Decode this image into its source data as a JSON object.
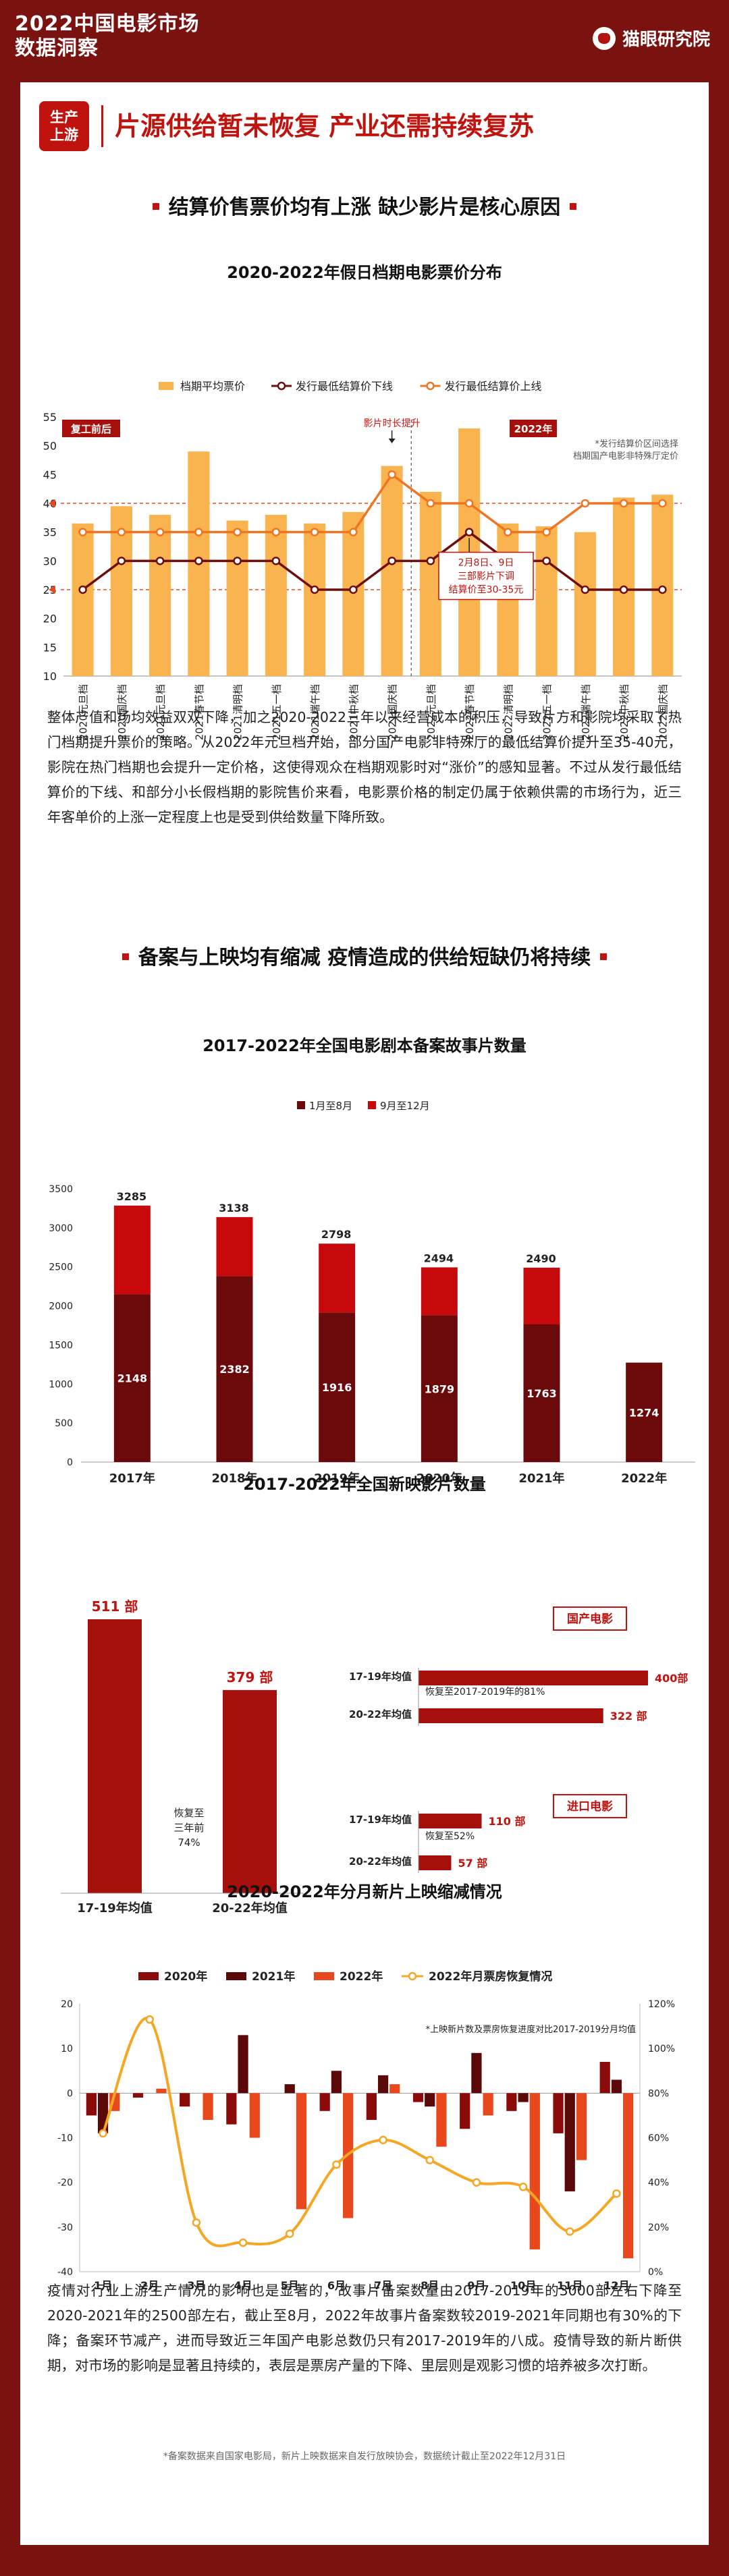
{
  "header": {
    "title_line1": "2022中国电影市场",
    "title_line2": "数据洞察",
    "brand": "猫眼研究院"
  },
  "section_tag": {
    "line1": "生产",
    "line2": "上游"
  },
  "main_title": "片源供给暂未恢复 产业还需持续复苏",
  "sub_title_1": "结算价售票价均有上涨 缺少影片是核心原因",
  "chart1": {
    "chart_data": {
      "type": "bar",
      "title": "2020-2022年假日档期电影票价分布",
      "categories": [
        "2020元旦档",
        "2020国庆档",
        "2021元旦档",
        "2021春节档",
        "2021清明档",
        "2021五一档",
        "2021端午档",
        "2021中秋档",
        "2021国庆档",
        "2022元旦档",
        "2022春节档",
        "2022清明档",
        "2022五一档",
        "2022端午档",
        "2022中秋档",
        "2022国庆档"
      ],
      "series": [
        {
          "name": "档期平均票价",
          "type": "bar",
          "color": "#f9b44f",
          "values": [
            36.5,
            39.5,
            38,
            49,
            37,
            38,
            36.5,
            38.5,
            46.5,
            42,
            53,
            36.5,
            36,
            35,
            41,
            41.5
          ]
        },
        {
          "name": "发行最低结算价下线",
          "type": "line",
          "color": "#6e0e0b",
          "values": [
            25,
            30,
            30,
            30,
            30,
            30,
            25,
            25,
            30,
            30,
            35,
            30,
            30,
            25,
            25,
            25
          ]
        },
        {
          "name": "发行最低结算价上线",
          "type": "line",
          "color": "#f07522",
          "values": [
            35,
            35,
            35,
            35,
            35,
            35,
            35,
            35,
            45,
            40,
            40,
            35,
            35,
            40,
            40,
            40
          ]
        }
      ],
      "ylim": [
        10,
        55
      ],
      "yticks": [
        10,
        15,
        20,
        25,
        30,
        35,
        40,
        45,
        50,
        55
      ],
      "annotations": {
        "left_tag": "复工前后",
        "right_tag": "2022年",
        "peak_note": "影片时长提升",
        "note_line1": "*发行结算价区间选择",
        "note_line2": "档期国产电影非特殊厅定价",
        "callout_line1": "2月8日、9日",
        "callout_line2": "三部影片下调",
        "callout_line3": "结算价至30-35元"
      }
    }
  },
  "para1": "整体产值和场均效益双双下降，加之2020-2022三年以来经营成本的积压，导致片方和影院均采取了热门档期提升票价的策略。从2022年元旦档开始，部分国产电影非特殊厅的最低结算价提升至35-40元，影院在热门档期也会提升一定价格，这使得观众在档期观影时对“涨价”的感知显著。不过从发行最低结算价的下线、和部分小长假档期的影院售价来看，电影票价格的制定仍属于依赖供需的市场行为，近三年客单价的上涨一定程度上也是受到供给数量下降所致。",
  "sub_title_2": "备案与上映均有缩减 疫情造成的供给短缺仍将持续",
  "chart2": {
    "chart_data": {
      "type": "bar",
      "title": "2017-2022年全国电影剧本备案故事片数量",
      "categories": [
        "2017年",
        "2018年",
        "2019年",
        "2020年",
        "2021年",
        "2022年"
      ],
      "series": [
        {
          "name": "1月至8月",
          "color": "#6b0a0a",
          "values": [
            2148,
            2382,
            1916,
            1879,
            1763,
            1274
          ]
        },
        {
          "name": "9月至12月",
          "color": "#c8090b",
          "values": [
            1137,
            756,
            882,
            615,
            727,
            null
          ]
        }
      ],
      "totals": [
        3285,
        3138,
        2798,
        2494,
        2490,
        null
      ],
      "ylim": [
        0,
        3500
      ],
      "yticks": [
        0,
        500,
        1000,
        1500,
        2000,
        2500,
        3000,
        3500
      ]
    }
  },
  "chart3": {
    "chart_data": {
      "type": "bar",
      "title": "2017-2022年全国新映影片数量",
      "categories": [
        "17-19年均值",
        "20-22年均值"
      ],
      "values": [
        511,
        379
      ],
      "value_labels": [
        "511 部",
        "379 部"
      ],
      "recovery_note": [
        "恢复至",
        "三年前",
        "74%"
      ],
      "domestic": {
        "label": "国产电影",
        "categories": [
          "17-19年均值",
          "20-22年均值"
        ],
        "values": [
          400,
          322
        ],
        "value_labels": [
          "400部",
          "322 部"
        ],
        "note": "恢复至2017-2019年的81%"
      },
      "imported": {
        "label": "进口电影",
        "categories": [
          "17-19年均值",
          "20-22年均值"
        ],
        "values": [
          110,
          57
        ],
        "value_labels": [
          "110 部",
          "57 部"
        ],
        "note": "恢复至52%"
      }
    }
  },
  "chart4": {
    "chart_data": {
      "type": "bar",
      "title": "2020-2022年分月新片上映缩减情况",
      "categories": [
        "1月",
        "2月",
        "3月",
        "4月",
        "5月",
        "6月",
        "7月",
        "8月",
        "9月",
        "10月",
        "11月",
        "12月"
      ],
      "series": [
        {
          "name": "2020年",
          "type": "bar",
          "color": "#8b0b0b",
          "values": [
            -5,
            -1,
            -3,
            -7,
            0,
            -4,
            -6,
            -2,
            -8,
            -4,
            -9,
            7
          ]
        },
        {
          "name": "2021年",
          "type": "bar",
          "color": "#5a0808",
          "values": [
            -9,
            0,
            0,
            13,
            2,
            5,
            4,
            -3,
            9,
            -2,
            -22,
            3
          ]
        },
        {
          "name": "2022年",
          "type": "bar",
          "color": "#e8481b",
          "values": [
            -4,
            1,
            -6,
            -10,
            -26,
            -28,
            2,
            -12,
            -5,
            -35,
            -15,
            -37
          ]
        },
        {
          "name": "2022年月票房恢复情况",
          "type": "line",
          "axis": "right",
          "color": "#f5a623",
          "values": [
            62,
            113,
            22,
            13,
            17,
            48,
            59,
            50,
            40,
            38,
            18,
            35
          ]
        }
      ],
      "ylim": [
        -40,
        20
      ],
      "yticks": [
        20,
        10,
        0,
        -10,
        -20,
        -30,
        -40
      ],
      "y2lim": [
        0,
        120
      ],
      "y2ticks": [
        "120%",
        "100%",
        "80%",
        "60%",
        "40%",
        "20%",
        "0%"
      ],
      "note": "*上映新片数及票房恢复进度对比2017-2019分月均值"
    }
  },
  "para2": "疫情对行业上游生产情况的影响也是显著的，故事片备案数量由2017-2019年的3000部左右下降至2020-2021年的2500部左右，截止至8月，2022年故事片备案数较2019-2021年同期也有30%的下降；备案环节减产，进而导致近三年国产电影总数仍只有2017-2019年的八成。疫情导致的新片断供期，对市场的影响是显著且持续的，表层是票房产量的下降、里层则是观影习惯的培养被多次打断。",
  "footnote": "*备案数据来自国家电影局，新片上映数据来自发行放映协会，数据统计截止至2022年12月31日"
}
